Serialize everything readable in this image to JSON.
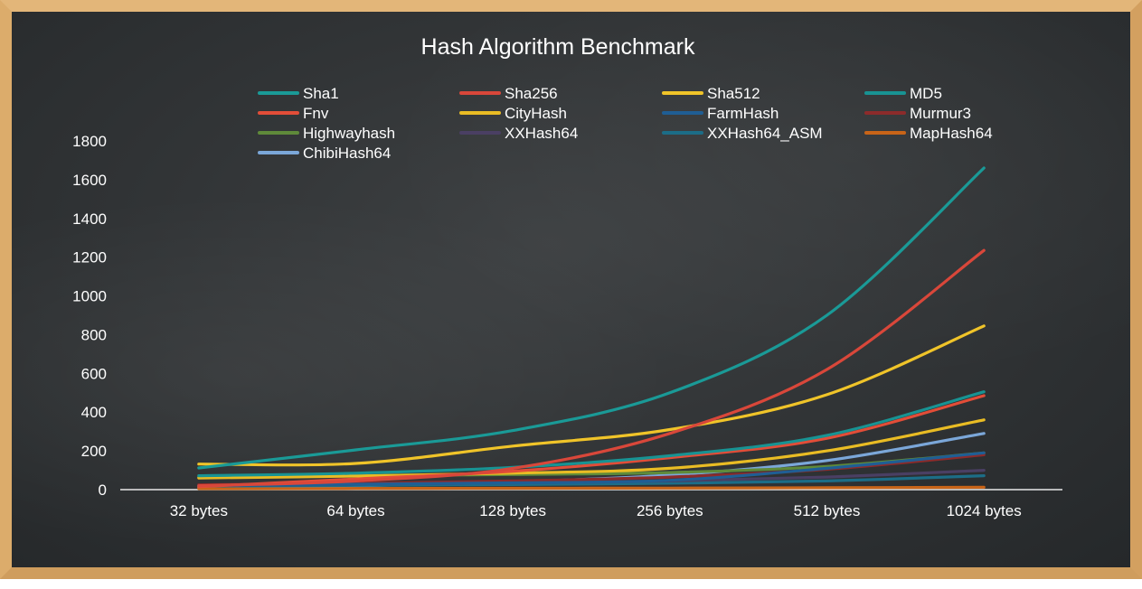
{
  "chart_data": {
    "type": "line",
    "title": "Hash Algorithm Benchmark",
    "xlabel": "",
    "ylabel": "",
    "categories": [
      "32 bytes",
      "64 bytes",
      "128 bytes",
      "256 bytes",
      "512 bytes",
      "1024 bytes"
    ],
    "ylim": [
      0,
      1800
    ],
    "yticks": [
      0,
      200,
      400,
      600,
      800,
      1000,
      1200,
      1400,
      1600,
      1800
    ],
    "grid": false,
    "legend": "top",
    "series": [
      {
        "name": "Sha1",
        "color": "#1a9a97",
        "values": [
          112,
          205,
          305,
          500,
          900,
          1660
        ]
      },
      {
        "name": "Sha256",
        "color": "#d9473a",
        "values": [
          20,
          45,
          110,
          290,
          620,
          1235
        ]
      },
      {
        "name": "Sha512",
        "color": "#f0c429",
        "values": [
          132,
          135,
          225,
          310,
          490,
          845
        ]
      },
      {
        "name": "MD5",
        "color": "#189393",
        "values": [
          72,
          85,
          115,
          175,
          280,
          505
        ]
      },
      {
        "name": "Fnv",
        "color": "#e24d38",
        "values": [
          15,
          55,
          95,
          165,
          265,
          485
        ]
      },
      {
        "name": "CityHash",
        "color": "#e9bc24",
        "values": [
          60,
          70,
          85,
          110,
          200,
          360
        ]
      },
      {
        "name": "FarmHash",
        "color": "#1f5e94",
        "values": [
          20,
          28,
          35,
          48,
          110,
          190
        ]
      },
      {
        "name": "Murmur3",
        "color": "#8c2b2b",
        "values": [
          25,
          32,
          45,
          65,
          105,
          180
        ]
      },
      {
        "name": "Highwayhash",
        "color": "#5f8a3a",
        "values": [
          65,
          72,
          78,
          88,
          120,
          190
        ]
      },
      {
        "name": "XXHash64",
        "color": "#4a3f63",
        "values": [
          22,
          28,
          35,
          45,
          65,
          100
        ]
      },
      {
        "name": "XXHash64_ASM",
        "color": "#1c6d87",
        "values": [
          18,
          22,
          26,
          33,
          45,
          72
        ]
      },
      {
        "name": "MapHash64",
        "color": "#c86418",
        "values": [
          5,
          6,
          7,
          8,
          10,
          12
        ]
      },
      {
        "name": "ChibiHash64",
        "color": "#7ba7d9",
        "values": [
          10,
          20,
          40,
          75,
          150,
          290
        ]
      }
    ]
  }
}
